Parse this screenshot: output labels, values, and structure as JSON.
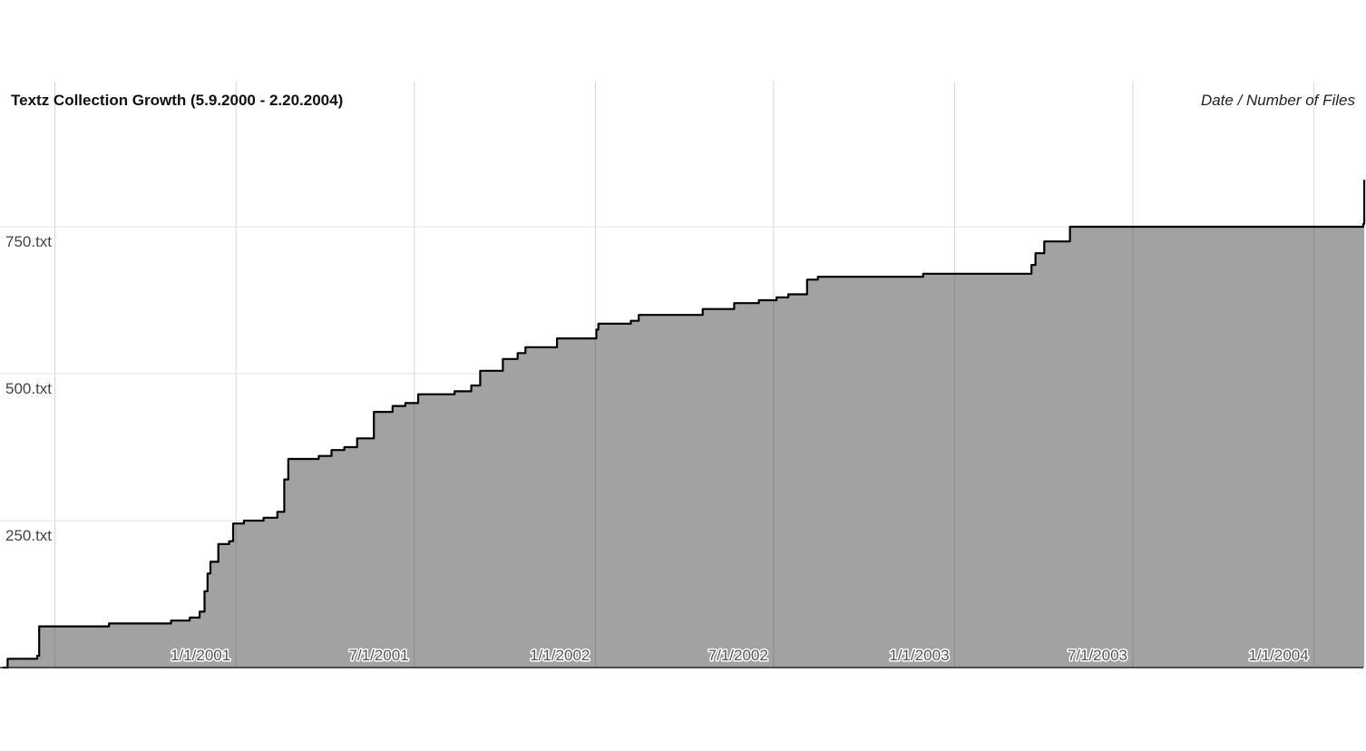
{
  "chart_data": {
    "type": "area",
    "title": "Textz Collection Growth (5.9.2000 - 2.20.2004)",
    "unit_label": "Date / Number of Files",
    "xlabel": "",
    "ylabel": "",
    "x_range": [
      "2000-05-09",
      "2004-02-20"
    ],
    "ylim": [
      0,
      750
    ],
    "grid": true,
    "x_ticks": [
      {
        "date": "2001-01-01",
        "label": "1/1/2001"
      },
      {
        "date": "2001-07-01",
        "label": "7/1/2001"
      },
      {
        "date": "2002-01-01",
        "label": "1/1/2002"
      },
      {
        "date": "2002-07-01",
        "label": "7/1/2002"
      },
      {
        "date": "2003-01-01",
        "label": "1/1/2003"
      },
      {
        "date": "2003-07-01",
        "label": "7/1/2003"
      },
      {
        "date": "2004-01-01",
        "label": "1/1/2004"
      }
    ],
    "y_ticks": [
      {
        "value": 250,
        "label": "250.txt"
      },
      {
        "value": 500,
        "label": "500.txt"
      },
      {
        "value": 750,
        "label": "750.txt"
      }
    ],
    "x_gridlines": [
      "2000-07-01",
      "2001-01-01",
      "2001-07-01",
      "2002-01-01",
      "2002-07-01",
      "2003-01-01",
      "2003-07-01",
      "2004-01-01"
    ],
    "series": [
      {
        "points": [
          [
            "2000-05-09",
            0
          ],
          [
            "2000-05-14",
            15
          ],
          [
            "2000-06-13",
            20
          ],
          [
            "2000-06-15",
            70
          ],
          [
            "2000-08-25",
            75
          ],
          [
            "2000-10-27",
            80
          ],
          [
            "2000-11-15",
            85
          ],
          [
            "2000-11-25",
            95
          ],
          [
            "2000-11-30",
            130
          ],
          [
            "2000-12-03",
            160
          ],
          [
            "2000-12-06",
            180
          ],
          [
            "2000-12-14",
            210
          ],
          [
            "2000-12-25",
            215
          ],
          [
            "2000-12-29",
            245
          ],
          [
            "2001-01-09",
            250
          ],
          [
            "2001-01-29",
            255
          ],
          [
            "2001-02-12",
            265
          ],
          [
            "2001-02-19",
            320
          ],
          [
            "2001-02-23",
            355
          ],
          [
            "2001-03-26",
            360
          ],
          [
            "2001-04-08",
            370
          ],
          [
            "2001-04-21",
            375
          ],
          [
            "2001-05-04",
            390
          ],
          [
            "2001-05-21",
            435
          ],
          [
            "2001-06-09",
            445
          ],
          [
            "2001-06-22",
            450
          ],
          [
            "2001-07-05",
            465
          ],
          [
            "2001-08-11",
            470
          ],
          [
            "2001-08-28",
            480
          ],
          [
            "2001-09-06",
            505
          ],
          [
            "2001-09-29",
            525
          ],
          [
            "2001-10-14",
            535
          ],
          [
            "2001-10-22",
            545
          ],
          [
            "2001-11-23",
            560
          ],
          [
            "2002-01-02",
            575
          ],
          [
            "2002-01-04",
            585
          ],
          [
            "2002-02-06",
            590
          ],
          [
            "2002-02-14",
            600
          ],
          [
            "2002-04-20",
            610
          ],
          [
            "2002-05-22",
            620
          ],
          [
            "2002-06-16",
            625
          ],
          [
            "2002-07-04",
            630
          ],
          [
            "2002-07-16",
            635
          ],
          [
            "2002-08-04",
            660
          ],
          [
            "2002-08-15",
            665
          ],
          [
            "2002-11-30",
            670
          ],
          [
            "2003-03-20",
            685
          ],
          [
            "2003-03-24",
            705
          ],
          [
            "2003-04-02",
            725
          ],
          [
            "2003-04-28",
            750
          ],
          [
            "2004-02-20",
            755
          ],
          [
            "2004-02-21",
            830
          ]
        ]
      }
    ]
  }
}
